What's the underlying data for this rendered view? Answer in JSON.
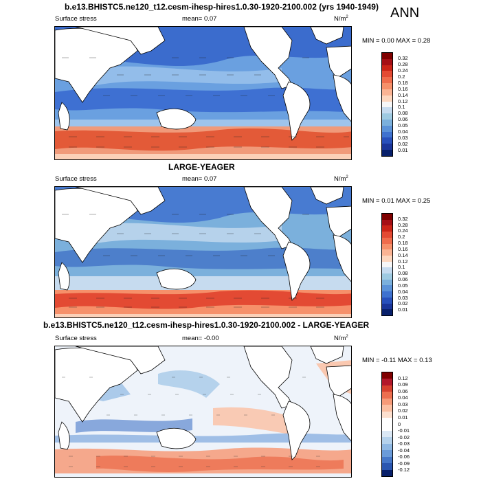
{
  "ann": "ANN",
  "panels": [
    {
      "title": "b.e13.BHISTC5.ne120_t12.cesm-ihesp-hires1.0.30-1920-2100.002 (yrs 1940-1949)",
      "var": "Surface stress",
      "mean": "mean=  0.07",
      "unit": "N/m",
      "unit_sup": "2",
      "minmax": "MIN =  0.00 MAX =  0.28",
      "levels": [
        "0.32",
        "0.28",
        "0.24",
        "0.2",
        "0.18",
        "0.16",
        "0.14",
        "0.12",
        "0.1",
        "0.08",
        "0.06",
        "0.05",
        "0.04",
        "0.03",
        "0.02",
        "0.01"
      ],
      "colors": [
        "#7f0000",
        "#a50f15",
        "#cb2417",
        "#e34a33",
        "#ef6c4c",
        "#f6906a",
        "#fbb494",
        "#fdd7bf",
        "#f7f7f7",
        "#c6dbef",
        "#9ecae1",
        "#7bb0dc",
        "#5b92d8",
        "#3f72cf",
        "#2850bb",
        "#1a3599",
        "#08206b"
      ]
    },
    {
      "title": "LARGE-YEAGER",
      "var": "Surface stress",
      "mean": "mean=  0.07",
      "unit": "N/m",
      "unit_sup": "2",
      "minmax": "MIN =  0.01 MAX =  0.25",
      "levels": [
        "0.32",
        "0.28",
        "0.24",
        "0.2",
        "0.18",
        "0.16",
        "0.14",
        "0.12",
        "0.1",
        "0.08",
        "0.06",
        "0.05",
        "0.04",
        "0.03",
        "0.02",
        "0.01"
      ],
      "colors": [
        "#7f0000",
        "#a50f15",
        "#cb2417",
        "#e34a33",
        "#ef6c4c",
        "#f6906a",
        "#fbb494",
        "#fdd7bf",
        "#f7f7f7",
        "#c6dbef",
        "#9ecae1",
        "#7bb0dc",
        "#5b92d8",
        "#3f72cf",
        "#2850bb",
        "#1a3599",
        "#08206b"
      ]
    },
    {
      "title": "b.e13.BHISTC5.ne120_t12.cesm-ihesp-hires1.0.30-1920-2100.002 - LARGE-YEAGER",
      "var": "Surface stress",
      "mean": "mean=  -0.00",
      "unit": "N/m",
      "unit_sup": "2",
      "minmax": "MIN = -0.11 MAX =  0.13",
      "levels": [
        "0.12",
        "0.09",
        "0.06",
        "0.04",
        "0.03",
        "0.02",
        "0.01",
        "0",
        "-0.01",
        "-0.02",
        "-0.03",
        "-0.04",
        "-0.06",
        "-0.09",
        "-0.12"
      ],
      "colors": [
        "#7f0000",
        "#b2182b",
        "#d6412f",
        "#ec6f4f",
        "#f69a78",
        "#fbbfa2",
        "#fde0cf",
        "#ffffff",
        "#ffffff",
        "#dbe8f5",
        "#b5d2ec",
        "#8fb8e3",
        "#6a9bd9",
        "#4577c8",
        "#2a56b0",
        "#08206b"
      ]
    }
  ]
}
